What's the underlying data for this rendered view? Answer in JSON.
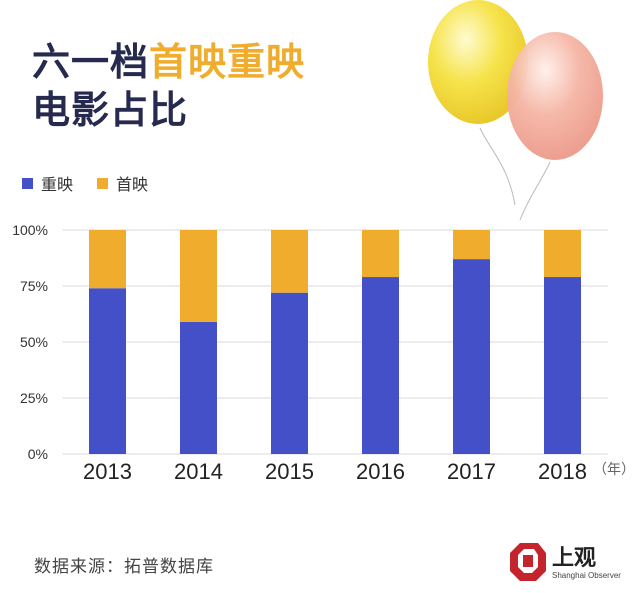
{
  "title": {
    "line1_part1": "六一档",
    "line1_part2": "首映重映",
    "line2": "电影占比"
  },
  "legend": [
    {
      "label": "重映",
      "color": "#4450c8"
    },
    {
      "label": "首映",
      "color": "#f0ac2d"
    }
  ],
  "source": "数据来源：拓普数据库",
  "logo": {
    "text": "上观",
    "subtext": "Shanghai Observer",
    "color": "#c4242b"
  },
  "chart_data": {
    "type": "bar",
    "stacked": true,
    "categories": [
      "2013",
      "2014",
      "2015",
      "2016",
      "2017",
      "2018"
    ],
    "series": [
      {
        "name": "重映",
        "values": [
          74,
          59,
          72,
          79,
          87,
          79
        ],
        "color": "#4450c8"
      },
      {
        "name": "首映",
        "values": [
          26,
          41,
          28,
          21,
          13,
          21
        ],
        "color": "#f0ac2d"
      }
    ],
    "xlabel": "（年）",
    "ylim": [
      0,
      100
    ],
    "yticks": [
      "0%",
      "25%",
      "50%",
      "75%",
      "100%"
    ],
    "grid": true
  }
}
